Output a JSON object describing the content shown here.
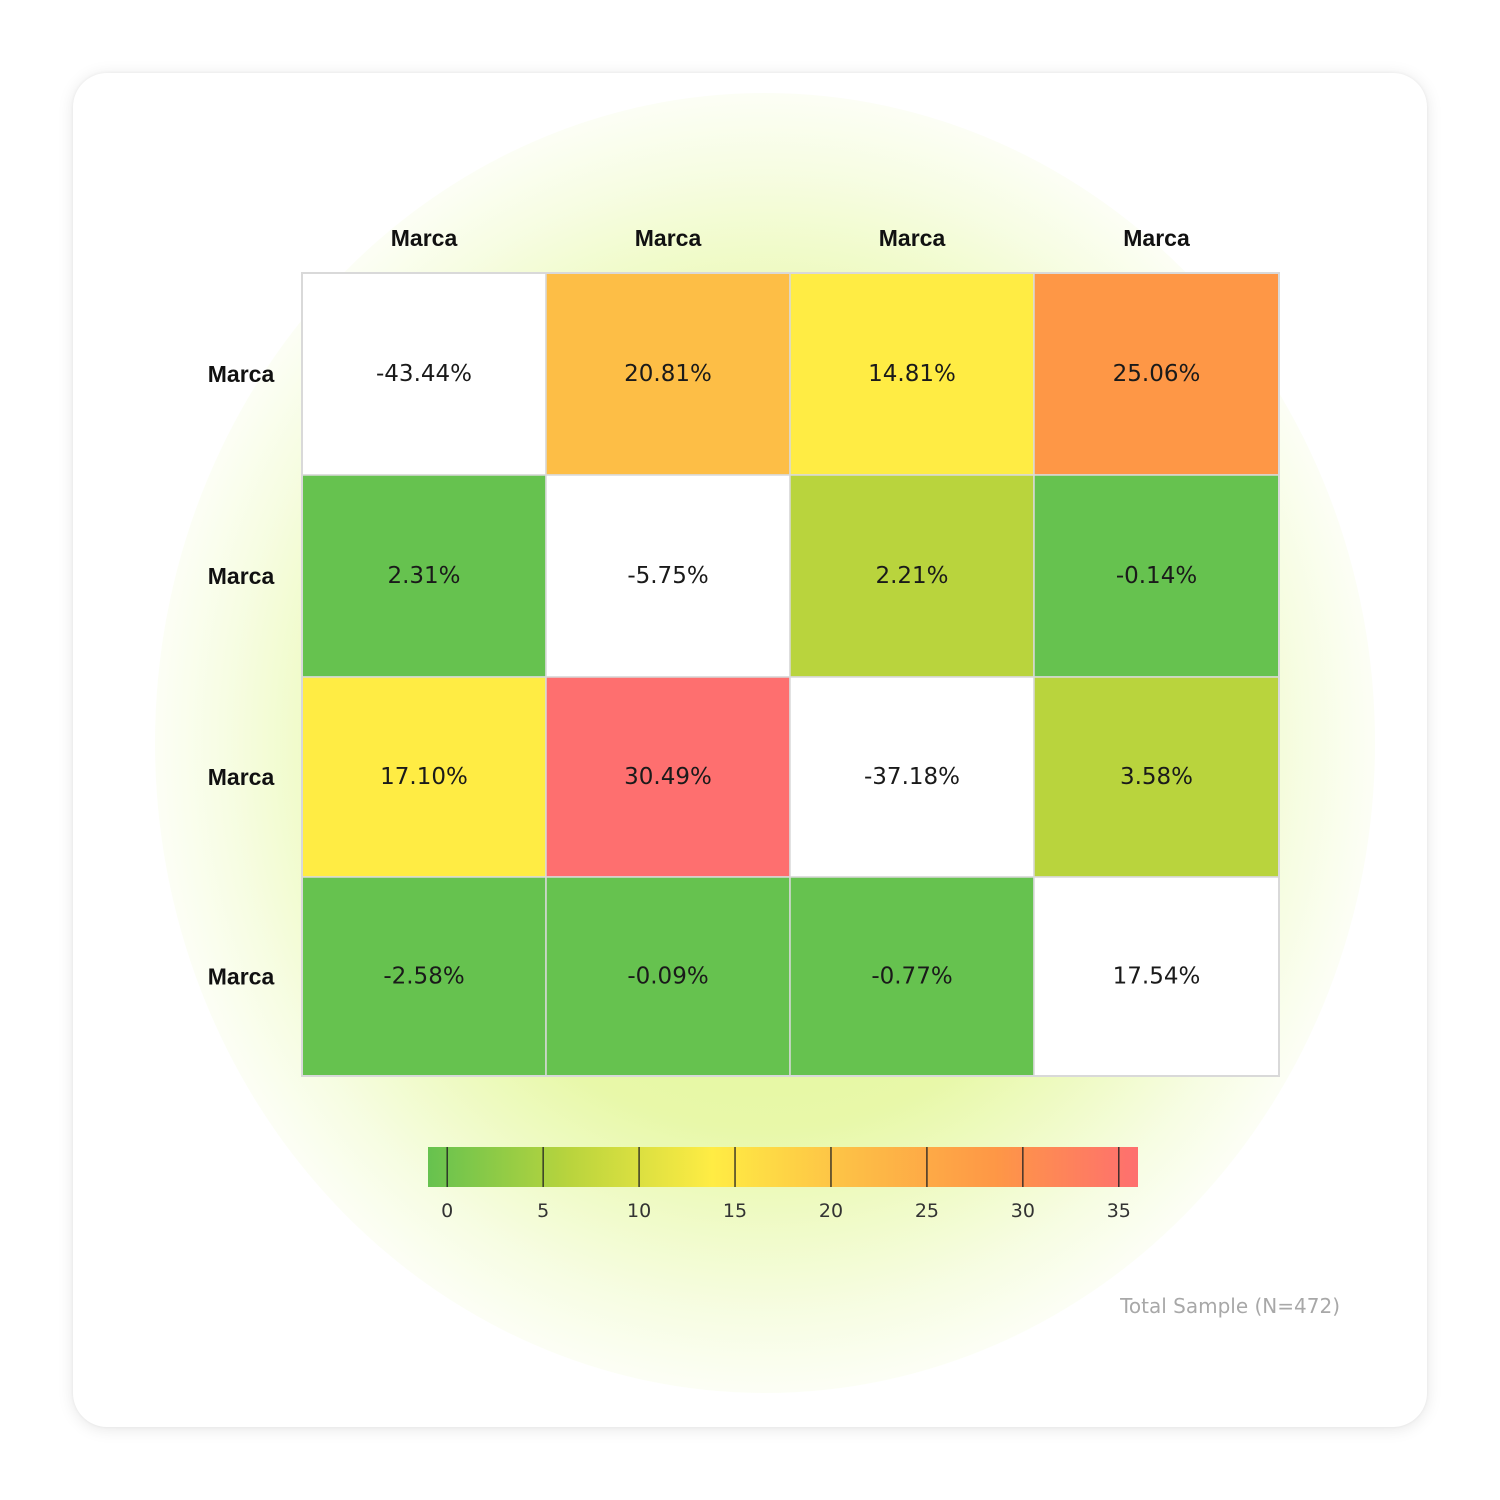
{
  "chart_data": {
    "type": "heatmap",
    "columns": [
      "Marca",
      "Marca",
      "Marca",
      "Marca"
    ],
    "rows": [
      "Marca",
      "Marca",
      "Marca",
      "Marca"
    ],
    "values": [
      [
        -43.44,
        20.81,
        14.81,
        25.06
      ],
      [
        2.31,
        -5.75,
        2.21,
        -0.14
      ],
      [
        17.1,
        30.49,
        -37.18,
        3.58
      ],
      [
        -2.58,
        -0.09,
        -0.77,
        17.54
      ]
    ],
    "labels": [
      [
        "-43.44%",
        "20.81%",
        "14.81%",
        "25.06%"
      ],
      [
        "2.31%",
        "-5.75%",
        "2.21%",
        "-0.14%"
      ],
      [
        "17.10%",
        "30.49%",
        "-37.18%",
        "3.58%"
      ],
      [
        "-2.58%",
        "-0.09%",
        "-0.77%",
        "17.54%"
      ]
    ],
    "cell_colors": [
      [
        "#ffffff",
        "#fdbe46",
        "#ffec44",
        "#fe9746"
      ],
      [
        "#66c24f",
        "#ffffff",
        "#b9d43d",
        "#66c24f"
      ],
      [
        "#ffec44",
        "#fe6f6f",
        "#ffffff",
        "#b9d43d"
      ],
      [
        "#66c24f",
        "#66c24f",
        "#66c24f",
        "#ffffff"
      ]
    ],
    "colorbar": {
      "range": [
        -1,
        36
      ],
      "ticks": [
        0,
        5,
        10,
        15,
        20,
        25,
        30,
        35
      ],
      "colors": [
        "#66c24f",
        "#b9d43d",
        "#ffec44",
        "#fdbe46",
        "#fe9746",
        "#fe6f6f"
      ]
    },
    "legend_placement": "bottom"
  },
  "footer": {
    "sample_note": "Total Sample (N=472)"
  }
}
